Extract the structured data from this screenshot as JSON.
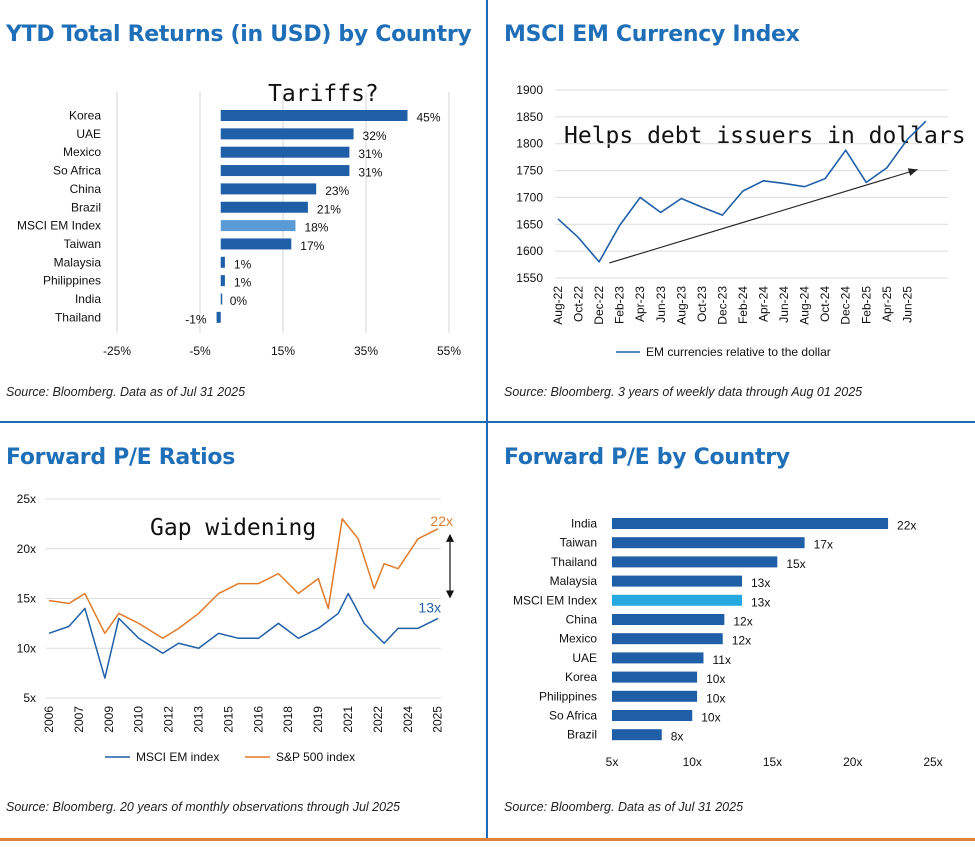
{
  "colors": {
    "title": "#1f6fb8",
    "bar": "#1f5fa8",
    "bar_highlight": "#5b9bd5",
    "bar_highlight2": "#26a9e0",
    "msci_line": "#1f5fa8",
    "sp_line": "#e07b2a",
    "divider": "#1d6ab6",
    "bottom_rule": "#e0833a"
  },
  "panels": {
    "ytd": {
      "title": "YTD Total Returns (in USD) by Country",
      "source": "Source: Bloomberg. Data as of Jul 31 2025",
      "annotation": "Tariffs?"
    },
    "currency": {
      "title": "MSCI EM Currency Index",
      "source": "Source: Bloomberg. 3 years of weekly data through Aug 01 2025",
      "annotation": "Helps debt issuers in dollars"
    },
    "pe": {
      "title": "Forward P/E Ratios",
      "source": "Source: Bloomberg. 20 years of monthly observations through Jul 2025",
      "annotation": "Gap widening"
    },
    "pe_country": {
      "title": "Forward P/E by Country",
      "source": "Source: Bloomberg. Data as of Jul 31 2025"
    }
  },
  "chart_data": [
    {
      "id": "ytd",
      "type": "bar",
      "orientation": "horizontal",
      "title": "YTD Total Returns (in USD) by Country",
      "categories": [
        "Korea",
        "UAE",
        "Mexico",
        "So Africa",
        "China",
        "Brazil",
        "MSCI EM Index",
        "Taiwan",
        "Malaysia",
        "Philippines",
        "India",
        "Thailand"
      ],
      "values": [
        45,
        32,
        31,
        31,
        23,
        21,
        18,
        17,
        1,
        1,
        0,
        -1
      ],
      "data_labels": [
        "45%",
        "32%",
        "31%",
        "31%",
        "23%",
        "21%",
        "18%",
        "17%",
        "1%",
        "1%",
        "0%",
        "-1%"
      ],
      "highlight": "MSCI EM Index",
      "xlim": [
        -25,
        55
      ],
      "xticks": [
        -25,
        -5,
        15,
        35,
        55
      ],
      "xtick_labels": [
        "-25%",
        "-5%",
        "15%",
        "35%",
        "55%"
      ],
      "grid": true
    },
    {
      "id": "currency",
      "type": "line",
      "title": "MSCI EM Currency Index",
      "ylim": [
        1550,
        1900
      ],
      "yticks": [
        1550,
        1600,
        1650,
        1700,
        1750,
        1800,
        1850,
        1900
      ],
      "xtick_labels": [
        "Aug-22",
        "Oct-22",
        "Dec-22",
        "Feb-23",
        "Apr-23",
        "Jun-23",
        "Aug-23",
        "Oct-23",
        "Dec-23",
        "Feb-24",
        "Apr-24",
        "Jun-24",
        "Aug-24",
        "Oct-24",
        "Dec-24",
        "Feb-25",
        "Apr-25",
        "Jun-25"
      ],
      "legend": [
        "EM currencies relative to the dollar"
      ],
      "series": [
        {
          "name": "EM currencies relative to the dollar",
          "x": [
            0,
            1,
            2,
            3,
            4,
            5,
            6,
            7,
            8,
            9,
            10,
            11,
            12,
            13,
            14,
            15,
            16,
            17,
            17.9
          ],
          "values": [
            1660,
            1625,
            1580,
            1648,
            1700,
            1672,
            1698,
            1682,
            1667,
            1712,
            1731,
            1726,
            1720,
            1735,
            1788,
            1728,
            1755,
            1808,
            1842
          ]
        }
      ],
      "trend_arrow": {
        "from": [
          2.5,
          1578
        ],
        "to": [
          17.5,
          1752
        ]
      },
      "grid": true
    },
    {
      "id": "pe",
      "type": "line",
      "title": "Forward P/E Ratios",
      "ylim": [
        5,
        25
      ],
      "yticks": [
        5,
        10,
        15,
        20,
        25
      ],
      "ytick_labels": [
        "5x",
        "10x",
        "15x",
        "20x",
        "25x"
      ],
      "xtick_labels": [
        "2006",
        "2007",
        "2009",
        "2010",
        "2012",
        "2013",
        "2015",
        "2016",
        "2018",
        "2019",
        "2021",
        "2022",
        "2024",
        "2025"
      ],
      "legend": [
        "MSCI EM index",
        "S&P 500 index"
      ],
      "series": [
        {
          "name": "MSCI EM index",
          "x": [
            2006,
            2007,
            2007.8,
            2008.8,
            2009.5,
            2010.5,
            2011.7,
            2012.5,
            2013.5,
            2014.5,
            2015.5,
            2016.5,
            2017.5,
            2018.5,
            2019.5,
            2020.5,
            2021,
            2021.8,
            2022.8,
            2023.5,
            2024.5,
            2025.5
          ],
          "values": [
            11.5,
            12.2,
            14.0,
            7.0,
            13.0,
            11.0,
            9.5,
            10.5,
            10.0,
            11.5,
            11.0,
            11.0,
            12.5,
            11.0,
            12.0,
            13.5,
            15.5,
            12.5,
            10.5,
            12.0,
            12.0,
            13.0
          ],
          "end_label": "13x"
        },
        {
          "name": "S&P 500 index",
          "x": [
            2006,
            2007,
            2007.8,
            2008.8,
            2009.5,
            2010.5,
            2011.7,
            2012.5,
            2013.5,
            2014.5,
            2015.5,
            2016.5,
            2017.5,
            2018.5,
            2019.5,
            2020,
            2020.7,
            2021.5,
            2022.3,
            2022.8,
            2023.5,
            2024.5,
            2025.5
          ],
          "values": [
            14.8,
            14.5,
            15.5,
            11.5,
            13.5,
            12.5,
            11.0,
            12.0,
            13.5,
            15.5,
            16.5,
            16.5,
            17.5,
            15.5,
            17.0,
            14.0,
            23.0,
            21.0,
            16.0,
            18.5,
            18.0,
            21.0,
            22.0
          ],
          "end_label": "22x"
        }
      ],
      "grid": true
    },
    {
      "id": "pe_country",
      "type": "bar",
      "orientation": "horizontal",
      "title": "Forward P/E by Country",
      "categories": [
        "India",
        "Taiwan",
        "Thailand",
        "Malaysia",
        "MSCI EM Index",
        "China",
        "Mexico",
        "UAE",
        "Korea",
        "Philippines",
        "So Africa",
        "Brazil"
      ],
      "values": [
        22.2,
        17.0,
        15.3,
        13.1,
        13.1,
        12.0,
        11.9,
        10.7,
        10.3,
        10.3,
        10.0,
        8.1
      ],
      "data_labels": [
        "22x",
        "17x",
        "15x",
        "13x",
        "13x",
        "12x",
        "12x",
        "11x",
        "10x",
        "10x",
        "10x",
        "8x"
      ],
      "highlight": "MSCI EM Index",
      "xlim": [
        5,
        25
      ],
      "xticks": [
        5,
        10,
        15,
        20,
        25
      ],
      "xtick_labels": [
        "5x",
        "10x",
        "15x",
        "20x",
        "25x"
      ],
      "grid": false
    }
  ]
}
